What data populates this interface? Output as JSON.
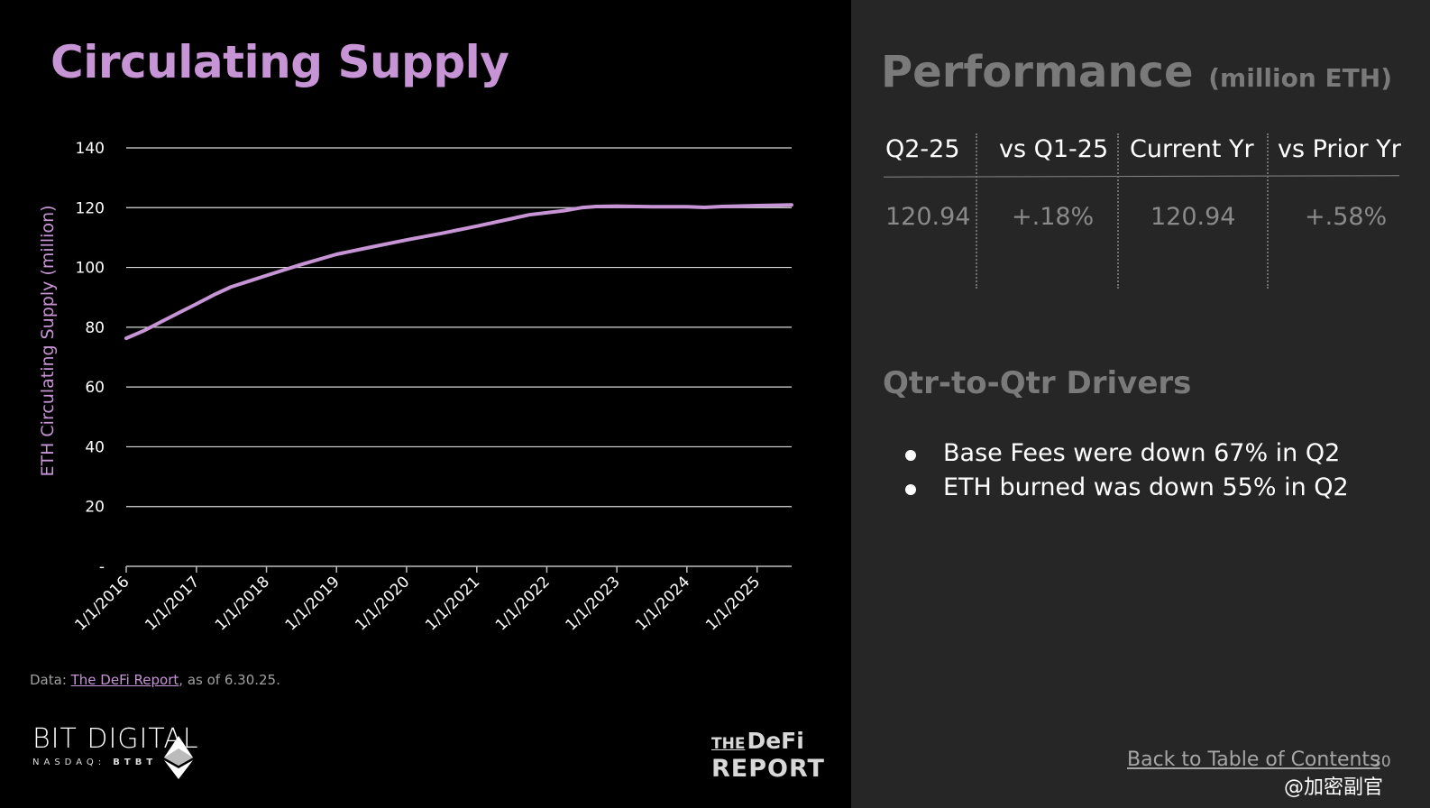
{
  "slide": {
    "title": "Circulating Supply",
    "source_prefix": "Data: ",
    "source_link": "The DeFi Report",
    "source_suffix": ", as of 6.30.25.",
    "logo_bitdigital": "BIT DIGITAL",
    "logo_nasdaq": "NASDAQ: ",
    "logo_ticker": "BTBT",
    "logo_defi_the": "THE",
    "logo_defi_defi": "DeFi",
    "logo_defi_report": "REPORT",
    "page_number": "30",
    "back_link": "Back to Table of Contents",
    "watermark": "@加密副官"
  },
  "performance": {
    "title": "Performance",
    "unit": "(million ETH)",
    "headers": [
      "Q2-25",
      "vs Q1-25",
      "Current Yr",
      "vs Prior Yr"
    ],
    "values": [
      "120.94",
      "+.18%",
      "120.94",
      "+.58%"
    ]
  },
  "drivers": {
    "title": "Qtr-to-Qtr Drivers",
    "items": [
      "Base Fees were down 67% in Q2",
      "ETH burned was down 55% in Q2"
    ]
  },
  "colors": {
    "accent": "#c794d6",
    "line": "#c794d6",
    "left_bg": "#000000",
    "right_bg": "#262626",
    "muted_text": "#7a7a7a"
  },
  "chart_data": {
    "type": "line",
    "title": "Circulating Supply",
    "ylabel": "ETH Circulating Supply (million)",
    "xlabel": "",
    "ylim": [
      0,
      140
    ],
    "yticks": [
      0,
      20,
      40,
      60,
      80,
      100,
      120,
      140
    ],
    "ytick_labels": [
      "-",
      "20",
      "40",
      "60",
      "80",
      "100",
      "120",
      "140"
    ],
    "xticks": [
      "1/1/2016",
      "1/1/2017",
      "1/1/2018",
      "1/1/2019",
      "1/1/2020",
      "1/1/2021",
      "1/1/2022",
      "1/1/2023",
      "1/1/2024",
      "1/1/2025"
    ],
    "xlim": [
      "2016-01-01",
      "2025-06-30"
    ],
    "grid": true,
    "series": [
      {
        "x": [
          "2016-01-01",
          "2016-04-01",
          "2016-07-01",
          "2016-10-01",
          "2017-01-01",
          "2017-04-01",
          "2017-07-01",
          "2017-10-01",
          "2018-01-01",
          "2018-07-01",
          "2019-01-01",
          "2019-07-01",
          "2020-01-01",
          "2020-07-01",
          "2021-01-01",
          "2021-07-01",
          "2021-10-01",
          "2022-01-01",
          "2022-04-01",
          "2022-07-01",
          "2022-09-15",
          "2023-01-01",
          "2023-07-01",
          "2024-01-01",
          "2024-04-01",
          "2024-07-01",
          "2025-01-01",
          "2025-06-30"
        ],
        "values": [
          76.3,
          78.8,
          81.8,
          84.8,
          87.8,
          90.8,
          93.5,
          95.4,
          97.3,
          101.0,
          104.4,
          106.8,
          109.2,
          111.4,
          113.8,
          116.3,
          117.6,
          118.3,
          119.0,
          120.0,
          120.4,
          120.5,
          120.3,
          120.3,
          120.1,
          120.4,
          120.7,
          120.94
        ]
      }
    ]
  }
}
